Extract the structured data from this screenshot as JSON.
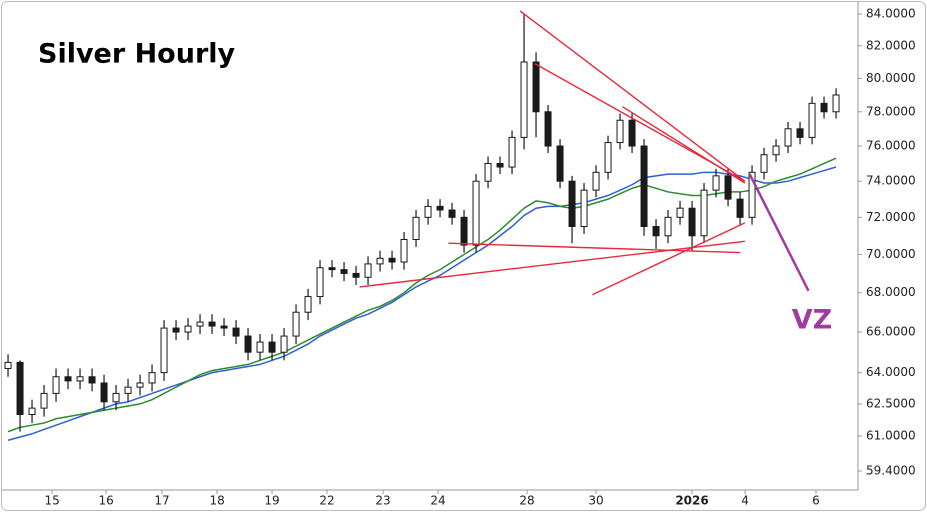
{
  "chart_data": {
    "type": "candlestick",
    "title": "Silver Hourly",
    "log_scale": true,
    "open": [
      64.2,
      64.5,
      62,
      62.3,
      63,
      63.8,
      63.6,
      63.8,
      63.5,
      62.6,
      63,
      63.3,
      63.5,
      64,
      66.2,
      66,
      66.3,
      66.5,
      66.3,
      66.2,
      65.8,
      65,
      65.5,
      65,
      65.8,
      67,
      67.8,
      69.3,
      69.2,
      69,
      68.8,
      69.5,
      69.8,
      69.6,
      70.8,
      72,
      72.6,
      72.4,
      72,
      70.5,
      74,
      75,
      74.8,
      76.5,
      81,
      78,
      76,
      74,
      71.5,
      73.5,
      74.5,
      76.2,
      77.5,
      76,
      71.5,
      71,
      72,
      72.5,
      71,
      73.5,
      74.3,
      73,
      72,
      74.5,
      75.5,
      76,
      77,
      76.5,
      78.5,
      78
    ],
    "high": [
      64.9,
      64.6,
      62.7,
      63.4,
      64.2,
      64.2,
      64.2,
      64.2,
      63.9,
      63.4,
      63.7,
      63.9,
      64.4,
      66.6,
      66.6,
      66.7,
      66.9,
      66.9,
      66.7,
      66.6,
      66.2,
      65.9,
      65.9,
      66.2,
      67.4,
      68.2,
      69.7,
      69.7,
      69.6,
      69.4,
      69.9,
      70.2,
      70.2,
      71.2,
      72.4,
      73,
      73,
      72.8,
      72.4,
      74.4,
      75.4,
      75.4,
      76.9,
      84,
      81.6,
      78.4,
      76.4,
      74.3,
      73.9,
      74.9,
      76.6,
      77.9,
      77.9,
      76.4,
      71.9,
      72.4,
      72.9,
      72.9,
      73.9,
      74.7,
      74.7,
      73.4,
      74.9,
      75.9,
      76.4,
      77.4,
      77.4,
      78.9,
      78.9,
      79.4
    ],
    "low": [
      63.8,
      61.2,
      61.6,
      61.9,
      62.6,
      63.2,
      63.2,
      63.1,
      62.2,
      62.2,
      62.6,
      62.9,
      63.1,
      63.6,
      65.6,
      65.6,
      65.9,
      65.9,
      65.8,
      65.4,
      64.6,
      64.6,
      64.6,
      64.6,
      65.4,
      66.6,
      67.4,
      68.8,
      68.6,
      68.4,
      68.4,
      69.1,
      69.2,
      69.2,
      70.4,
      71.6,
      72,
      71.6,
      70.1,
      70.1,
      73.6,
      74.4,
      74.4,
      75.8,
      76.5,
      75.6,
      73.6,
      70.6,
      71.1,
      73.1,
      74.1,
      75.8,
      75.6,
      71,
      70.3,
      70.6,
      71.6,
      70.2,
      70.6,
      73.1,
      72.6,
      71.6,
      71.6,
      74.1,
      75.1,
      75.6,
      76.1,
      76.1,
      77.6,
      77.6
    ],
    "close": [
      64.5,
      62,
      62.3,
      63,
      63.8,
      63.6,
      63.8,
      63.5,
      62.6,
      63,
      63.3,
      63.5,
      64,
      66.2,
      66,
      66.3,
      66.5,
      66.3,
      66.2,
      65.8,
      65,
      65.5,
      65,
      65.8,
      67,
      67.8,
      69.3,
      69.2,
      69,
      68.8,
      69.5,
      69.8,
      69.6,
      70.8,
      72,
      72.6,
      72.4,
      72,
      70.5,
      74,
      75,
      74.8,
      76.5,
      81,
      78,
      76,
      74,
      71.5,
      73.5,
      74.5,
      76.2,
      77.5,
      76,
      71.5,
      71,
      72,
      72.5,
      71,
      73.5,
      74.3,
      73,
      72,
      74.5,
      75.5,
      76,
      77,
      76.5,
      78.5,
      78,
      79
    ],
    "candle_color": "#1a1a1a",
    "lines": [
      {
        "color": "#2f5fd8",
        "values": [
          60.8,
          60.95,
          61.1,
          61.3,
          61.5,
          61.7,
          61.9,
          62.1,
          62.3,
          62.5,
          62.6,
          62.8,
          63,
          63.2,
          63.4,
          63.6,
          63.8,
          64,
          64.1,
          64.2,
          64.3,
          64.4,
          64.6,
          64.8,
          65.1,
          65.4,
          65.8,
          66.1,
          66.4,
          66.7,
          66.9,
          67.2,
          67.5,
          67.9,
          68.3,
          68.6,
          68.9,
          69.3,
          69.7,
          70.1,
          70.5,
          71,
          71.5,
          72.1,
          72.5,
          72.6,
          72.6,
          72.7,
          72.8,
          73,
          73.2,
          73.5,
          73.8,
          74.2,
          74.3,
          74.4,
          74.4,
          74.4,
          74.5,
          74.5,
          74.4,
          74.3,
          74.1,
          73.9,
          73.9,
          74,
          74.2,
          74.4,
          74.6,
          74.8
        ]
      },
      {
        "color": "#2e8b2e",
        "values": [
          61.2,
          61.4,
          61.5,
          61.6,
          61.8,
          61.9,
          62,
          62.1,
          62.2,
          62.3,
          62.4,
          62.5,
          62.7,
          63,
          63.3,
          63.6,
          63.9,
          64.1,
          64.2,
          64.3,
          64.4,
          64.6,
          64.8,
          65,
          65.3,
          65.6,
          65.9,
          66.2,
          66.5,
          66.8,
          67.1,
          67.3,
          67.6,
          68,
          68.5,
          68.9,
          69.2,
          69.6,
          70,
          70.4,
          70.8,
          71.3,
          71.9,
          72.5,
          72.9,
          72.8,
          72.6,
          72.5,
          72.6,
          72.8,
          73,
          73.3,
          73.6,
          73.8,
          73.6,
          73.4,
          73.3,
          73.2,
          73.2,
          73.3,
          73.4,
          73.4,
          73.5,
          73.7,
          74,
          74.2,
          74.4,
          74.7,
          75,
          75.3
        ]
      }
    ],
    "trendlines": [
      {
        "color": "#e8283c",
        "x": [
          42.67,
          61.4
        ],
        "y": [
          84.2,
          74.0
        ]
      },
      {
        "color": "#e8283c",
        "x": [
          43.9,
          61.4
        ],
        "y": [
          80.9,
          74.0
        ]
      },
      {
        "color": "#e8283c",
        "x": [
          51.2,
          61.4
        ],
        "y": [
          78.3,
          73.9
        ]
      },
      {
        "color": "#e8283c",
        "x": [
          29.3,
          61.4
        ],
        "y": [
          68.3,
          70.7
        ]
      },
      {
        "color": "#e8283c",
        "x": [
          36.7,
          61
        ],
        "y": [
          70.6,
          70.1
        ]
      },
      {
        "color": "#e8283c",
        "x": [
          48.7,
          61.4
        ],
        "y": [
          67.9,
          71.7
        ]
      },
      {
        "color": "#a03ca0",
        "x": [
          61.8,
          66.7
        ],
        "y": [
          74.4,
          68.1
        ]
      }
    ],
    "annotation": {
      "text": "VZ",
      "color": "#a03ca0"
    },
    "xlim": [
      -0.67,
      70.83
    ],
    "xticks": [
      {
        "value": 3.67,
        "label": "15"
      },
      {
        "value": 8.17,
        "label": "16"
      },
      {
        "value": 12.83,
        "label": "17"
      },
      {
        "value": 17.42,
        "label": "18"
      },
      {
        "value": 22,
        "label": "19"
      },
      {
        "value": 26.58,
        "label": "22"
      },
      {
        "value": 31.25,
        "label": "23"
      },
      {
        "value": 35.83,
        "label": "24"
      },
      {
        "value": 43.25,
        "label": "28"
      },
      {
        "value": 49,
        "label": "30"
      },
      {
        "value": 57,
        "label": "2026",
        "bold": true
      },
      {
        "value": 61.42,
        "label": "4"
      },
      {
        "value": 67.33,
        "label": "6"
      }
    ],
    "ylim": [
      58.55,
      84.9
    ],
    "yticks": [
      {
        "value": 59.4,
        "label": "59.4000"
      },
      {
        "value": 61,
        "label": "61.0000"
      },
      {
        "value": 62.5,
        "label": "62.5000"
      },
      {
        "value": 64,
        "label": "64.0000"
      },
      {
        "value": 66,
        "label": "66.0000"
      },
      {
        "value": 68,
        "label": "68.0000"
      },
      {
        "value": 70,
        "label": "70.0000"
      },
      {
        "value": 72,
        "label": "72.0000"
      },
      {
        "value": 74,
        "label": "74.0000"
      },
      {
        "value": 76,
        "label": "76.0000"
      },
      {
        "value": 78,
        "label": "78.0000"
      },
      {
        "value": 80,
        "label": "80.0000"
      },
      {
        "value": 82,
        "label": "82.0000"
      },
      {
        "value": 84,
        "label": "84.0000"
      }
    ]
  }
}
